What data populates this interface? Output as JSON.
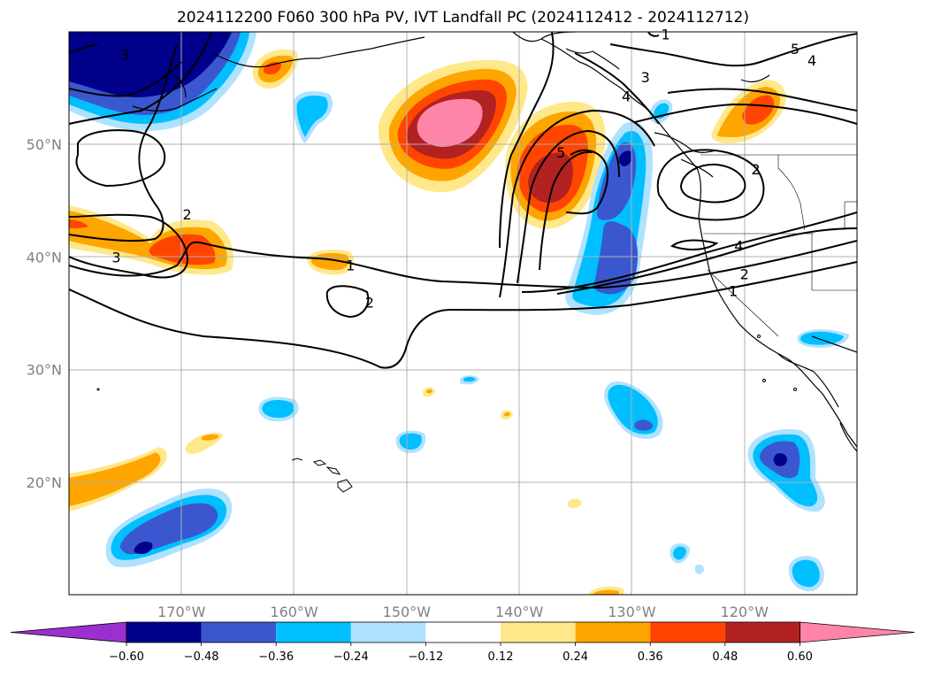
{
  "title": "2024112200 F060 300 hPa PV, IVT Landfall PC (2024112412 - 2024112712)",
  "map": {
    "extent": {
      "lon_min": -180,
      "lon_max": -110,
      "lat_min": 10,
      "lat_max": 60
    },
    "lat_ticks": [
      {
        "value": 20,
        "label": "20°N"
      },
      {
        "value": 30,
        "label": "30°N"
      },
      {
        "value": 40,
        "label": "40°N"
      },
      {
        "value": 50,
        "label": "50°N"
      }
    ],
    "lon_ticks": [
      {
        "value": -170,
        "label": "170°W"
      },
      {
        "value": -160,
        "label": "160°W"
      },
      {
        "value": -150,
        "label": "150°W"
      },
      {
        "value": -140,
        "label": "140°W"
      },
      {
        "value": -130,
        "label": "130°W"
      },
      {
        "value": -120,
        "label": "120°W"
      }
    ],
    "gridlines": true,
    "contour_labels": [
      {
        "text": "1",
        "lon": -155,
        "lat": 39.3
      },
      {
        "text": "2",
        "lon": -153.3,
        "lat": 36
      },
      {
        "text": "2",
        "lon": -169.5,
        "lat": 43.8
      },
      {
        "text": "3",
        "lon": -175.8,
        "lat": 40
      },
      {
        "text": "5",
        "lon": -136.3,
        "lat": 49.3
      },
      {
        "text": "3",
        "lon": -128.8,
        "lat": 56
      },
      {
        "text": "4",
        "lon": -130.5,
        "lat": 54.3
      },
      {
        "text": "2",
        "lon": -119,
        "lat": 47.8
      },
      {
        "text": "4",
        "lon": -120.5,
        "lat": 41
      },
      {
        "text": "2",
        "lon": -120,
        "lat": 38.5
      },
      {
        "text": "1",
        "lon": -121,
        "lat": 37
      },
      {
        "text": "5",
        "lon": -115.5,
        "lat": 58.5
      },
      {
        "text": "4",
        "lon": -114,
        "lat": 57.5
      },
      {
        "text": "1",
        "lon": -127,
        "lat": 59.8
      },
      {
        "text": "3",
        "lon": -175,
        "lat": 58
      }
    ]
  },
  "colorbar": {
    "boundaries": [
      -0.6,
      -0.48,
      -0.36,
      -0.24,
      -0.12,
      0.12,
      0.24,
      0.36,
      0.48,
      0.6
    ],
    "tick_labels": [
      "−0.60",
      "−0.48",
      "−0.36",
      "−0.24",
      "−0.12",
      "0.12",
      "0.24",
      "0.36",
      "0.48",
      "0.60"
    ],
    "colors": [
      "#9b30d0",
      "#00008b",
      "#3a57d0",
      "#00bfff",
      "#afe2ff",
      "#ffffff",
      "#ffe88a",
      "#ffa500",
      "#ff4500",
      "#b22222",
      "#ff85a8"
    ],
    "extend": "both"
  }
}
